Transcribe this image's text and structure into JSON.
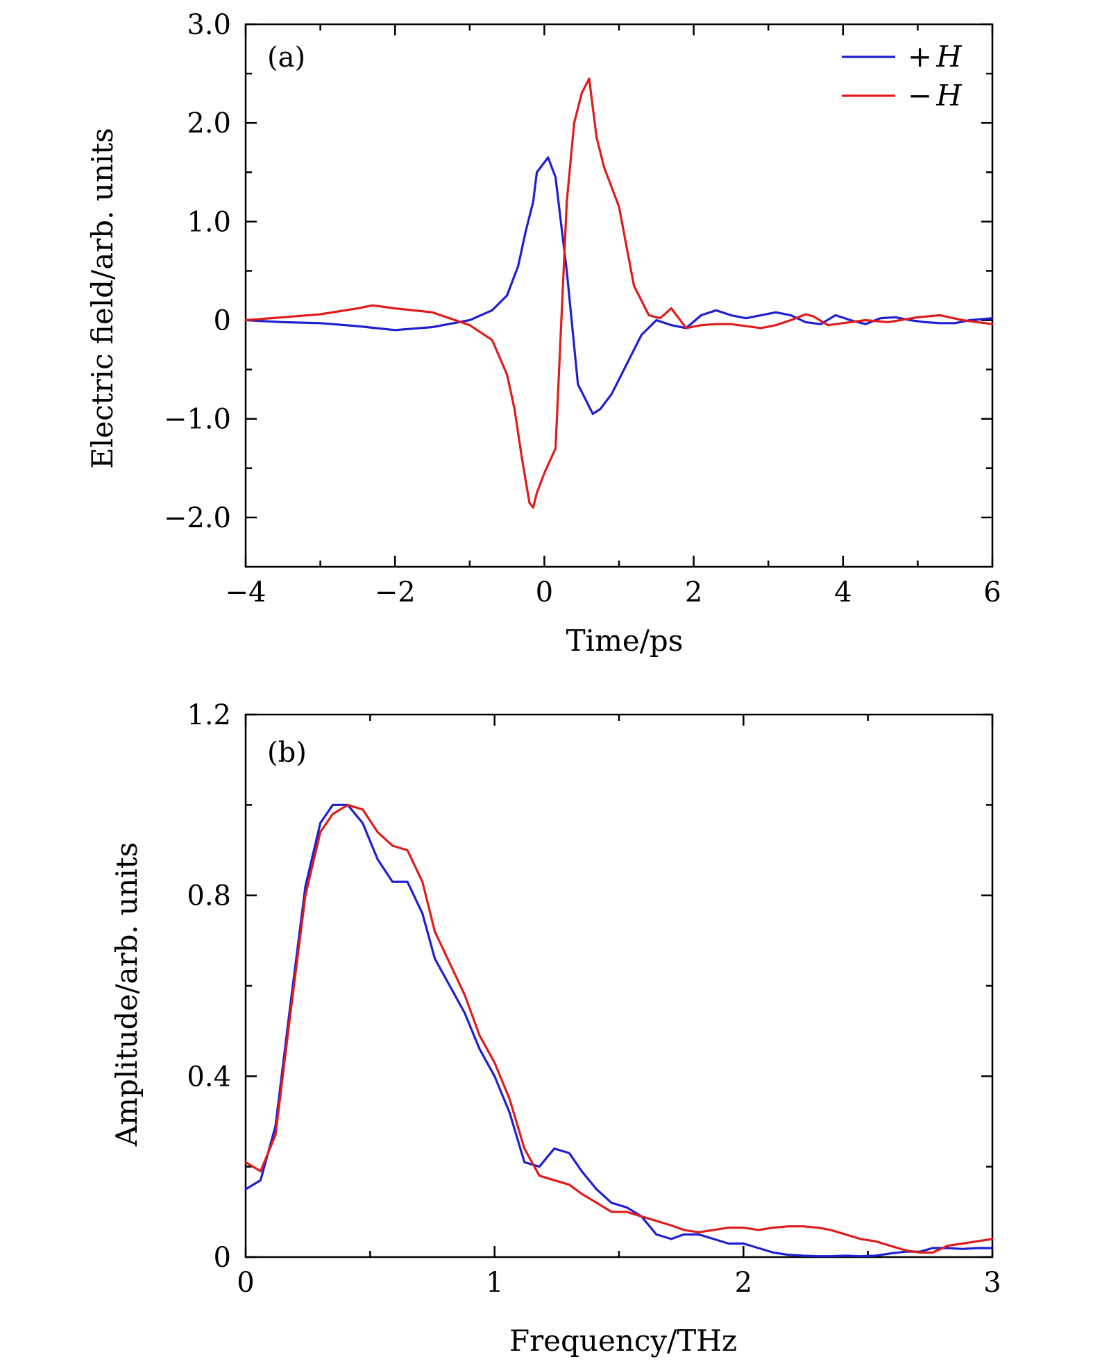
{
  "chart_data": [
    {
      "type": "line",
      "panel_label": "(a)",
      "xlabel": "Time/ps",
      "ylabel": "Electric field/arb. units",
      "xlim": [
        -4,
        6
      ],
      "ylim": [
        -2.5,
        3.0
      ],
      "xticks": [
        -4,
        -2,
        0,
        2,
        4,
        6
      ],
      "xtick_labels": [
        "−4",
        "−2",
        "0",
        "2",
        "4",
        "6"
      ],
      "yticks": [
        -2.0,
        -1.0,
        0,
        1.0,
        2.0,
        3.0
      ],
      "ytick_labels": [
        "−2.0",
        "−1.0",
        "0",
        "1.0",
        "2.0",
        "3.0"
      ],
      "legend": {
        "position": "top-right"
      },
      "series": [
        {
          "name": "+H",
          "sign": "+",
          "symbol": "H",
          "color": "#1f1fd1",
          "x": [
            -4,
            -3.5,
            -3,
            -2.5,
            -2,
            -1.5,
            -1,
            -0.7,
            -0.5,
            -0.35,
            -0.25,
            -0.15,
            -0.1,
            0,
            0.05,
            0.15,
            0.3,
            0.45,
            0.65,
            0.75,
            0.9,
            1.1,
            1.3,
            1.5,
            1.7,
            1.9,
            2.1,
            2.3,
            2.5,
            2.7,
            2.9,
            3.1,
            3.3,
            3.5,
            3.7,
            3.9,
            4.1,
            4.3,
            4.5,
            4.7,
            4.9,
            5.1,
            5.3,
            5.5,
            5.7,
            6
          ],
          "y": [
            0,
            -0.02,
            -0.03,
            -0.06,
            -0.1,
            -0.07,
            0.0,
            0.1,
            0.25,
            0.55,
            0.9,
            1.2,
            1.5,
            1.6,
            1.65,
            1.45,
            0.5,
            -0.65,
            -0.95,
            -0.9,
            -0.75,
            -0.45,
            -0.15,
            0.0,
            -0.05,
            -0.08,
            0.05,
            0.1,
            0.05,
            0.02,
            0.05,
            0.08,
            0.05,
            -0.02,
            -0.04,
            0.05,
            0.0,
            -0.04,
            0.02,
            0.03,
            0.0,
            -0.02,
            -0.03,
            -0.03,
            0.0,
            0.02
          ]
        },
        {
          "name": "−H",
          "sign": "−",
          "symbol": "H",
          "color": "#e01b1b",
          "x": [
            -4,
            -3.5,
            -3,
            -2.5,
            -2.3,
            -2,
            -1.5,
            -1,
            -0.7,
            -0.5,
            -0.4,
            -0.3,
            -0.2,
            -0.15,
            -0.1,
            0,
            0.15,
            0.3,
            0.4,
            0.5,
            0.6,
            0.7,
            0.8,
            1.0,
            1.2,
            1.4,
            1.55,
            1.7,
            1.9,
            2.1,
            2.3,
            2.5,
            2.7,
            2.9,
            3.1,
            3.3,
            3.5,
            3.6,
            3.8,
            4.0,
            4.3,
            4.6,
            5.0,
            5.3,
            5.6,
            6
          ],
          "y": [
            0,
            0.03,
            0.06,
            0.12,
            0.15,
            0.12,
            0.08,
            -0.05,
            -0.2,
            -0.55,
            -0.9,
            -1.4,
            -1.85,
            -1.9,
            -1.75,
            -1.55,
            -1.3,
            1.2,
            2.0,
            2.3,
            2.45,
            1.85,
            1.55,
            1.15,
            0.35,
            0.05,
            0.02,
            0.12,
            -0.08,
            -0.05,
            -0.04,
            -0.04,
            -0.06,
            -0.08,
            -0.05,
            0.0,
            0.06,
            0.04,
            -0.05,
            -0.03,
            0.0,
            -0.02,
            0.03,
            0.05,
            0.0,
            -0.04
          ]
        }
      ]
    },
    {
      "type": "line",
      "panel_label": "(b)",
      "xlabel": "Frequency/THz",
      "ylabel": "Amplitude/arb. units",
      "xlim": [
        0,
        3
      ],
      "ylim": [
        0,
        1.2
      ],
      "xticks": [
        0,
        1,
        2,
        3
      ],
      "xtick_labels": [
        "0",
        "1",
        "2",
        "3"
      ],
      "yticks": [
        0,
        0.4,
        0.8,
        1.2
      ],
      "ytick_labels": [
        "0",
        "0.4",
        "0.8",
        "1.2"
      ],
      "series": [
        {
          "name": "+H",
          "color": "#1f1fd1",
          "x": [
            0,
            0.06,
            0.12,
            0.18,
            0.24,
            0.3,
            0.35,
            0.41,
            0.47,
            0.53,
            0.59,
            0.65,
            0.71,
            0.76,
            0.82,
            0.88,
            0.94,
            1.0,
            1.06,
            1.12,
            1.18,
            1.24,
            1.3,
            1.35,
            1.41,
            1.47,
            1.53,
            1.59,
            1.65,
            1.71,
            1.76,
            1.82,
            1.88,
            1.94,
            2.0,
            2.06,
            2.12,
            2.18,
            2.24,
            2.3,
            2.35,
            2.41,
            2.47,
            2.53,
            2.59,
            2.65,
            2.71,
            2.76,
            2.82,
            2.88,
            2.94,
            3.0
          ],
          "y": [
            0.15,
            0.17,
            0.29,
            0.56,
            0.82,
            0.96,
            1.0,
            1.0,
            0.96,
            0.88,
            0.83,
            0.83,
            0.76,
            0.66,
            0.6,
            0.54,
            0.46,
            0.4,
            0.32,
            0.21,
            0.2,
            0.24,
            0.23,
            0.19,
            0.15,
            0.12,
            0.11,
            0.09,
            0.05,
            0.04,
            0.05,
            0.05,
            0.04,
            0.03,
            0.03,
            0.02,
            0.01,
            0.005,
            0.003,
            0.002,
            0.002,
            0.003,
            0.002,
            0.003,
            0.008,
            0.012,
            0.012,
            0.02,
            0.02,
            0.018,
            0.02,
            0.02
          ]
        },
        {
          "name": "−H",
          "color": "#e01b1b",
          "x": [
            0,
            0.06,
            0.12,
            0.18,
            0.24,
            0.3,
            0.35,
            0.41,
            0.47,
            0.53,
            0.59,
            0.65,
            0.71,
            0.76,
            0.82,
            0.88,
            0.94,
            1.0,
            1.06,
            1.12,
            1.18,
            1.24,
            1.3,
            1.35,
            1.41,
            1.47,
            1.53,
            1.59,
            1.65,
            1.71,
            1.76,
            1.82,
            1.88,
            1.94,
            2.0,
            2.06,
            2.12,
            2.18,
            2.24,
            2.3,
            2.35,
            2.41,
            2.47,
            2.53,
            2.59,
            2.65,
            2.71,
            2.76,
            2.82,
            2.88,
            2.94,
            3.0
          ],
          "y": [
            0.21,
            0.19,
            0.27,
            0.54,
            0.8,
            0.94,
            0.98,
            1.0,
            0.99,
            0.94,
            0.91,
            0.9,
            0.83,
            0.72,
            0.65,
            0.58,
            0.49,
            0.43,
            0.35,
            0.24,
            0.18,
            0.17,
            0.16,
            0.14,
            0.12,
            0.1,
            0.1,
            0.09,
            0.08,
            0.07,
            0.06,
            0.055,
            0.06,
            0.065,
            0.065,
            0.06,
            0.065,
            0.068,
            0.068,
            0.065,
            0.06,
            0.05,
            0.04,
            0.035,
            0.025,
            0.015,
            0.01,
            0.01,
            0.025,
            0.03,
            0.035,
            0.04
          ]
        }
      ]
    }
  ]
}
